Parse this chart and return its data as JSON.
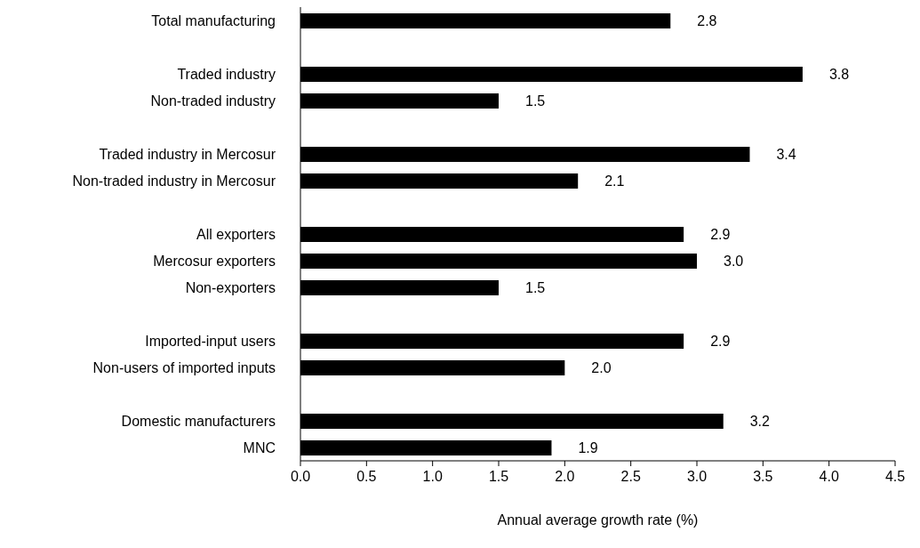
{
  "chart_data": {
    "type": "bar",
    "orientation": "horizontal",
    "xlabel": "Annual average growth rate (%)",
    "categories": [
      "Total manufacturing",
      null,
      "Traded industry",
      "Non-traded industry",
      null,
      "Traded industry in Mercosur",
      "Non-traded industry in Mercosur",
      null,
      "All exporters",
      "Mercosur exporters",
      "Non-exporters",
      null,
      "Imported-input users",
      "Non-users of imported inputs",
      null,
      "Domestic manufacturers",
      "MNC"
    ],
    "values": [
      2.8,
      null,
      3.8,
      1.5,
      null,
      3.4,
      2.1,
      null,
      2.9,
      3.0,
      1.5,
      null,
      2.9,
      2.0,
      null,
      3.2,
      1.9
    ],
    "value_labels": [
      "2.8",
      null,
      "3.8",
      "1.5",
      null,
      "3.4",
      "2.1",
      null,
      "2.9",
      "3.0",
      "1.5",
      null,
      "2.9",
      "2.0",
      null,
      "3.2",
      "1.9"
    ],
    "color": "#000000",
    "xlim": [
      0,
      4.5
    ],
    "xticks": [
      {
        "value": 0,
        "label": "0.0"
      },
      {
        "value": 0.5,
        "label": "0.5"
      },
      {
        "value": 1,
        "label": "1.0"
      },
      {
        "value": 1.5,
        "label": "1.5"
      },
      {
        "value": 2,
        "label": "2.0"
      },
      {
        "value": 2.5,
        "label": "2.5"
      },
      {
        "value": 3,
        "label": "3.0"
      },
      {
        "value": 3.5,
        "label": "3.5"
      },
      {
        "value": 4,
        "label": "4.0"
      },
      {
        "value": 4.5,
        "label": "4.5"
      }
    ],
    "grid": false,
    "legend": false
  }
}
